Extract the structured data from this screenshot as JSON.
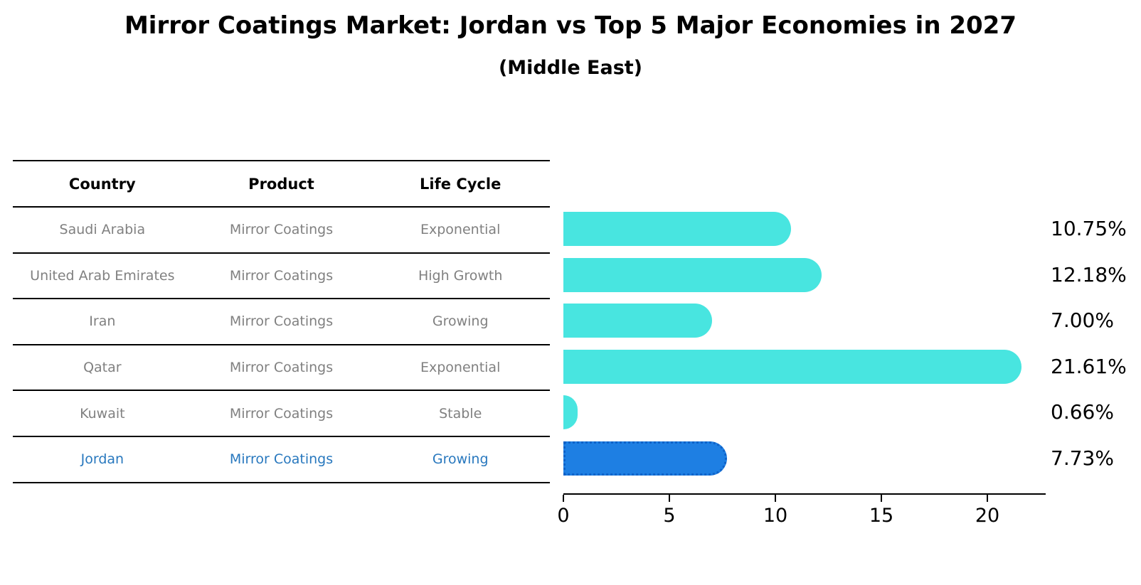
{
  "title": "Mirror Coatings Market: Jordan vs Top 5 Major Economies in 2027",
  "subtitle": "(Middle East)",
  "table": {
    "headers": [
      "Country",
      "Product",
      "Life Cycle"
    ],
    "rows": [
      {
        "country": "Saudi Arabia",
        "product": "Mirror Coatings",
        "life_cycle": "Exponential",
        "highlight": false
      },
      {
        "country": "United Arab Emirates",
        "product": "Mirror Coatings",
        "life_cycle": "High Growth",
        "highlight": false
      },
      {
        "country": "Iran",
        "product": "Mirror Coatings",
        "life_cycle": "Growing",
        "highlight": false
      },
      {
        "country": "Qatar",
        "product": "Mirror Coatings",
        "life_cycle": "Exponential",
        "highlight": false
      },
      {
        "country": "Kuwait",
        "product": "Mirror Coatings",
        "life_cycle": "Stable",
        "highlight": false
      },
      {
        "country": "Jordan",
        "product": "Mirror Coatings",
        "life_cycle": "Growing",
        "highlight": true
      }
    ]
  },
  "chart_data": {
    "type": "bar",
    "orientation": "horizontal",
    "title": "Mirror Coatings Market: Jordan vs Top 5 Major Economies in 2027",
    "subtitle": "(Middle East)",
    "categories": [
      "Saudi Arabia",
      "United Arab Emirates",
      "Iran",
      "Qatar",
      "Kuwait",
      "Jordan"
    ],
    "values": [
      10.75,
      12.18,
      7.0,
      21.61,
      0.66,
      7.73
    ],
    "value_labels": [
      "10.75%",
      "12.18%",
      "7.00%",
      "21.61%",
      "0.66%",
      "7.73%"
    ],
    "x_ticks": [
      0,
      5,
      10,
      15,
      20
    ],
    "xlim": [
      0,
      22.75
    ],
    "xlabel": "",
    "ylabel": "",
    "grid": false,
    "legend": false,
    "highlight_index": 5,
    "unit": "percent"
  },
  "colors": {
    "bar_color": "#48E5E0",
    "highlight_bar_color": "#1E7FE3",
    "highlight_border_color": "#0F62C8",
    "highlight_text_color": "#2878BE",
    "row_text_color": "#808080",
    "axis_color": "#000000"
  }
}
